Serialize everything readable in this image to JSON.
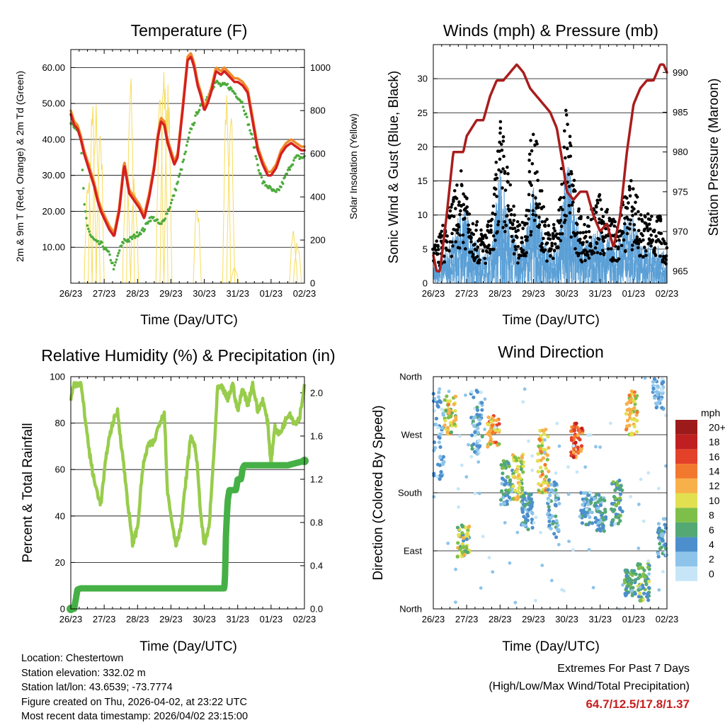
{
  "colors": {
    "temp2m": "#d42020",
    "temp9m": "#f08a2a",
    "dewpoint": "#4cab3c",
    "solar": "#f7dc5a",
    "gust": "#000000",
    "wind": "#5a9fd6",
    "pressure": "#a91d1d",
    "rh": "#98cc4c",
    "precip": "#45b045",
    "grid": "#000000"
  },
  "x_ticks": [
    "26/23",
    "27/23",
    "28/23",
    "29/23",
    "30/23",
    "31/23",
    "01/23",
    "02/23"
  ],
  "chart_data": [
    {
      "id": "temperature",
      "type": "line",
      "title": "Temperature (F)",
      "xlabel": "Time (Day/UTC)",
      "ylabel_left": "2m & 9m T (Red, Orange) & 2m Td (Green)",
      "ylabel_right": "Solar Insolation (Yellow)",
      "ylim_left": [
        0,
        65
      ],
      "ylim_right": [
        0,
        1083
      ],
      "yticks_left": [
        "10.00",
        "20.00",
        "30.00",
        "40.00",
        "50.00",
        "60.00"
      ],
      "yticks_right": [
        "0",
        "200",
        "400",
        "600",
        "800",
        "1000"
      ],
      "x_days": [
        0,
        0.1,
        0.2,
        0.3,
        0.4,
        0.5,
        0.6,
        0.7,
        0.8,
        0.9,
        1.0,
        1.15,
        1.3,
        1.45,
        1.6,
        1.75,
        1.9,
        2.05,
        2.2,
        2.35,
        2.5,
        2.6,
        2.7,
        2.8,
        2.9,
        3.0,
        3.1,
        3.2,
        3.35,
        3.5,
        3.6,
        3.7,
        3.8,
        3.9,
        4.0,
        4.1,
        4.2,
        4.35,
        4.5,
        4.6,
        4.7,
        4.8,
        4.9,
        5.0,
        5.15,
        5.3,
        5.45,
        5.6,
        5.75,
        5.9,
        6.0,
        6.15,
        6.3,
        6.45,
        6.6,
        6.75,
        6.9,
        7.0
      ],
      "series": [
        {
          "name": "2m T",
          "values": [
            47,
            44,
            43,
            40,
            36,
            33,
            30,
            27,
            23,
            20,
            18,
            15,
            13,
            20,
            33,
            25,
            23,
            21,
            18,
            24,
            32,
            40,
            45,
            44,
            39,
            36,
            33,
            35,
            48,
            62,
            63,
            60,
            55,
            52,
            48,
            50,
            53,
            59,
            58,
            59,
            58,
            57,
            56,
            56,
            55,
            53,
            45,
            37,
            33,
            30,
            30,
            32,
            36,
            38,
            39,
            38,
            37,
            37
          ]
        },
        {
          "name": "Td",
          "values": [
            45,
            44,
            43,
            40,
            22,
            16,
            13,
            12,
            11,
            11,
            10,
            8,
            4,
            9,
            12,
            12,
            13,
            14,
            15,
            18,
            18,
            17,
            16,
            18,
            20,
            22,
            25,
            28,
            33,
            39,
            43,
            45,
            48,
            49,
            50,
            52,
            54,
            56,
            55,
            55,
            55,
            54,
            53,
            52,
            50,
            45,
            40,
            33,
            28,
            27,
            26,
            25,
            27,
            30,
            33,
            35,
            35,
            35
          ]
        }
      ],
      "solar": {
        "peaks": [
          {
            "day": 0.7,
            "values": [
              520,
              870,
              870,
              800
            ]
          },
          {
            "day": 1.85,
            "values": [
              600,
              1000,
              530
            ]
          },
          {
            "day": 2.85,
            "values": [
              880,
              1080,
              950
            ]
          },
          {
            "day": 3.85,
            "values": [
              0,
              380
            ]
          },
          {
            "day": 4.85,
            "values": [
              950,
              850,
              80
            ]
          },
          {
            "day": 5.85,
            "values": [
              0,
              0
            ]
          },
          {
            "day": 6.85,
            "values": [
              260,
              220
            ]
          }
        ]
      }
    },
    {
      "id": "winds",
      "type": "scatter+line",
      "title": "Winds (mph) & Pressure (mb)",
      "xlabel": "Time (Day/UTC)",
      "ylabel_left": "Sonic Wind & Gust (Blue, Black)",
      "ylabel_right": "Station Pressure (Maroon)",
      "ylim_left": [
        0,
        35
      ],
      "ylim_right": [
        963.5,
        993.5
      ],
      "yticks_left": [
        "0",
        "5",
        "10",
        "15",
        "20",
        "25",
        "30"
      ],
      "yticks_right": [
        "965",
        "970",
        "975",
        "980",
        "985",
        "990"
      ],
      "pressure": {
        "x_days": [
          0,
          0.1,
          0.2,
          0.4,
          0.6,
          0.9,
          1.0,
          1.3,
          1.5,
          1.7,
          1.9,
          2.1,
          2.3,
          2.5,
          2.7,
          2.9,
          3.1,
          3.3,
          3.5,
          3.7,
          3.9,
          4.0,
          4.2,
          4.4,
          4.6,
          4.8,
          5.0,
          5.2,
          5.4,
          5.6,
          5.8,
          6.0,
          6.2,
          6.4,
          6.6,
          6.8,
          6.9,
          7.0
        ],
        "values": [
          967,
          965,
          965,
          972,
          980,
          980,
          982,
          984,
          984,
          987,
          989,
          989,
          990,
          991,
          990,
          988,
          987,
          986,
          985,
          983,
          978,
          975,
          974,
          975,
          975,
          972,
          970,
          971,
          968,
          972,
          980,
          986,
          988,
          989,
          989,
          991,
          991,
          990
        ]
      },
      "wind_envelope": {
        "x_days": [
          0,
          0.3,
          0.6,
          0.9,
          1.2,
          1.5,
          1.75,
          2.0,
          2.25,
          2.5,
          2.75,
          3.0,
          3.25,
          3.5,
          3.75,
          4.0,
          4.25,
          4.5,
          4.75,
          5.0,
          5.25,
          5.5,
          5.75,
          6.0,
          6.25,
          6.5,
          6.75,
          7.0
        ],
        "mean": [
          2,
          3,
          5,
          9,
          5,
          3,
          4,
          13,
          7,
          4,
          5,
          11,
          6,
          3,
          5,
          14,
          8,
          4,
          5,
          6,
          5,
          4,
          7,
          7,
          4,
          4,
          4,
          3
        ],
        "gust": [
          5,
          8,
          12,
          16,
          9,
          7,
          9,
          23,
          15,
          8,
          10,
          23,
          12,
          7,
          10,
          25,
          13,
          8,
          10,
          12,
          10,
          8,
          13,
          14,
          9,
          10,
          10,
          6
        ]
      }
    },
    {
      "id": "humidity",
      "type": "line",
      "title": "Relative Humidity (%) & Precipitation (in)",
      "xlabel": "Time (Day/UTC)",
      "ylabel_left": "Percent & Total Rainfall",
      "ylim_left": [
        0,
        100
      ],
      "ylim_right": [
        0,
        2.15
      ],
      "yticks_left": [
        "0",
        "20",
        "40",
        "60",
        "80",
        "100"
      ],
      "yticks_right": [
        "0.0",
        "0.4",
        "0.8",
        "1.2",
        "1.6",
        "2.0"
      ],
      "rh": {
        "x_days": [
          0,
          0.1,
          0.3,
          0.45,
          0.55,
          0.7,
          0.9,
          1.0,
          1.1,
          1.25,
          1.4,
          1.6,
          1.75,
          1.85,
          2.0,
          2.15,
          2.3,
          2.5,
          2.65,
          2.8,
          2.9,
          3.0,
          3.15,
          3.3,
          3.5,
          3.6,
          3.75,
          3.9,
          4.0,
          4.15,
          4.3,
          4.4,
          4.55,
          4.7,
          4.85,
          5.0,
          5.15,
          5.3,
          5.45,
          5.6,
          5.75,
          5.9,
          6.0,
          6.1,
          6.25,
          6.4,
          6.55,
          6.7,
          6.85,
          7.0
        ],
        "values": [
          90,
          97,
          97,
          80,
          68,
          55,
          45,
          58,
          70,
          80,
          85,
          60,
          40,
          28,
          35,
          60,
          70,
          72,
          80,
          85,
          50,
          40,
          28,
          35,
          62,
          75,
          68,
          40,
          27,
          36,
          70,
          95,
          95,
          90,
          97,
          85,
          95,
          88,
          97,
          85,
          90,
          80,
          62,
          78,
          75,
          80,
          85,
          80,
          82,
          96
        ]
      },
      "precip": {
        "x_days": [
          0,
          0.1,
          0.2,
          0.3,
          0.5,
          1.0,
          2.0,
          3.0,
          4.0,
          4.5,
          4.6,
          4.62,
          4.65,
          4.7,
          4.75,
          4.85,
          4.95,
          5.0,
          5.1,
          5.15,
          5.2,
          5.3,
          5.5,
          6.0,
          6.5,
          7.0
        ],
        "values": [
          0.0,
          0.0,
          0.18,
          0.19,
          0.19,
          0.19,
          0.19,
          0.19,
          0.19,
          0.19,
          0.19,
          0.3,
          0.7,
          1.0,
          1.1,
          1.1,
          1.1,
          1.2,
          1.2,
          1.3,
          1.33,
          1.33,
          1.33,
          1.33,
          1.33,
          1.37
        ]
      }
    },
    {
      "id": "direction",
      "type": "scatter",
      "title": "Wind Direction",
      "xlabel": "Time (Day/UTC)",
      "ylabel_left": "Direction (Colored By Speed)",
      "yticks_left": [
        "North",
        "East",
        "South",
        "West",
        "North"
      ],
      "legend_title": "mph",
      "legend_labels": [
        "0",
        "2",
        "4",
        "6",
        "8",
        "10",
        "12",
        "14",
        "16",
        "18",
        "20+"
      ],
      "legend_colors": [
        "#c6e6f7",
        "#8ec4ea",
        "#4d8fcc",
        "#53a874",
        "#7ebf4a",
        "#e2e050",
        "#f8b04a",
        "#f2782e",
        "#e3412a",
        "#c01f21",
        "#9c1a1a"
      ],
      "clusters": [
        {
          "day": 0.15,
          "dir": [
            200,
            340
          ],
          "spd": [
            0,
            5
          ]
        },
        {
          "day": 0.5,
          "dir": [
            270,
            330
          ],
          "spd": [
            6,
            14
          ]
        },
        {
          "day": 0.9,
          "dir": [
            80,
            130
          ],
          "spd": [
            4,
            12
          ]
        },
        {
          "day": 1.3,
          "dir": [
            240,
            340
          ],
          "spd": [
            0,
            6
          ]
        },
        {
          "day": 1.8,
          "dir": [
            250,
            300
          ],
          "spd": [
            8,
            16
          ]
        },
        {
          "day": 2.2,
          "dir": [
            160,
            230
          ],
          "spd": [
            2,
            8
          ]
        },
        {
          "day": 2.55,
          "dir": [
            160,
            240
          ],
          "spd": [
            6,
            12
          ]
        },
        {
          "day": 2.8,
          "dir": [
            120,
            180
          ],
          "spd": [
            2,
            6
          ]
        },
        {
          "day": 3.3,
          "dir": [
            180,
            280
          ],
          "spd": [
            8,
            14
          ]
        },
        {
          "day": 3.6,
          "dir": [
            110,
            200
          ],
          "spd": [
            1,
            6
          ]
        },
        {
          "day": 4.3,
          "dir": [
            230,
            290
          ],
          "spd": [
            12,
            18
          ]
        },
        {
          "day": 4.6,
          "dir": [
            130,
            180
          ],
          "spd": [
            2,
            6
          ]
        },
        {
          "day": 5.0,
          "dir": [
            120,
            180
          ],
          "spd": [
            2,
            7
          ]
        },
        {
          "day": 5.5,
          "dir": [
            130,
            200
          ],
          "spd": [
            3,
            8
          ]
        },
        {
          "day": 5.95,
          "dir": [
            270,
            340
          ],
          "spd": [
            8,
            14
          ]
        },
        {
          "day": 5.9,
          "dir": [
            20,
            60
          ],
          "spd": [
            4,
            8
          ]
        },
        {
          "day": 6.3,
          "dir": [
            10,
            70
          ],
          "spd": [
            4,
            10
          ]
        },
        {
          "day": 6.75,
          "dir": [
            310,
            360
          ],
          "spd": [
            0,
            5
          ]
        },
        {
          "day": 6.9,
          "dir": [
            80,
            140
          ],
          "spd": [
            2,
            6
          ]
        }
      ]
    }
  ],
  "info": {
    "location": "Location: Chestertown",
    "elevation": "Station elevation: 332.02 m",
    "latlon": "Station lat/lon: 43.6539; -73.7774",
    "created": "Figure created on Thu, 2026-04-02, at 23:22 UTC",
    "latest": "Most recent data timestamp: 2026/04/02 23:15:00"
  },
  "extremes": {
    "title": "Extremes For Past 7 Days",
    "subtitle": "(High/Low/Max Wind/Total Precipitation)",
    "values": "64.7/12.5/17.8/1.37"
  }
}
